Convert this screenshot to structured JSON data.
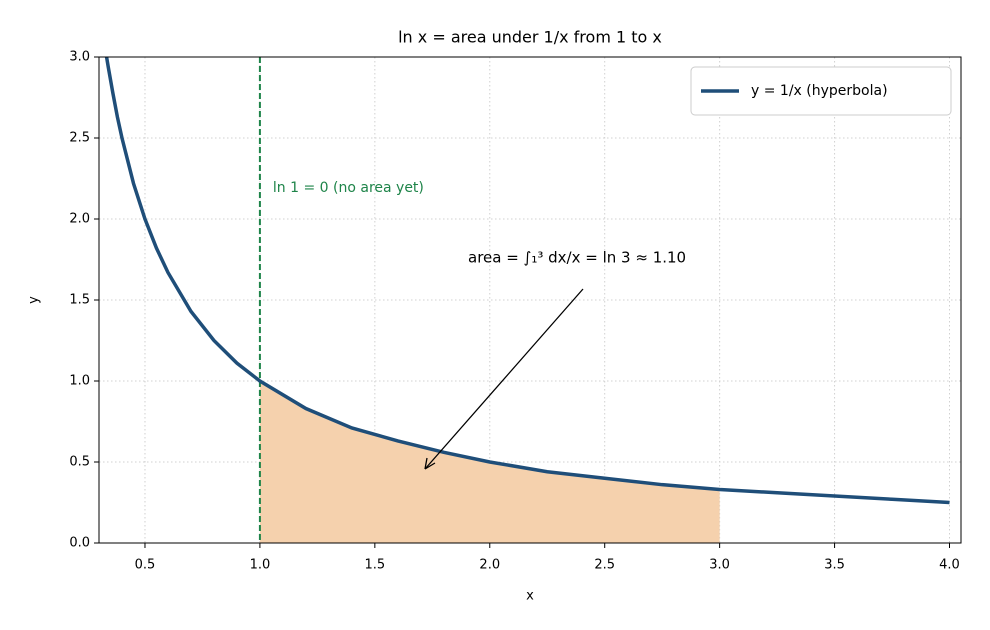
{
  "chart_data": {
    "type": "line",
    "title": "ln x = area under 1/x from 1 to x",
    "x_label": "x",
    "y_label": "y",
    "x": [
      0.333,
      0.34,
      0.36,
      0.38,
      0.4,
      0.45,
      0.5,
      0.55,
      0.6,
      0.7,
      0.8,
      0.9,
      1.0,
      1.2,
      1.4,
      1.6,
      1.8,
      2.0,
      2.25,
      2.5,
      2.75,
      3.0,
      3.25,
      3.5,
      3.75,
      4.0
    ],
    "series": [
      {
        "name": "y = 1/x  (hyperbola)",
        "color": "#1f4e79",
        "values": [
          3.0,
          2.94,
          2.78,
          2.63,
          2.5,
          2.22,
          2.0,
          1.82,
          1.67,
          1.43,
          1.25,
          1.11,
          1.0,
          0.83,
          0.71,
          0.63,
          0.56,
          0.5,
          0.44,
          0.4,
          0.36,
          0.33,
          0.31,
          0.29,
          0.27,
          0.25
        ]
      }
    ],
    "fill_range": [
      1,
      3
    ],
    "fill_color": "#f5d1ad",
    "vline": {
      "x": 1,
      "color": "#1e8449",
      "label": "ln 1 = 0 (no area yet)"
    },
    "annotation": "area  = ∫₁³ dx/x = ln 3 ≈ 1.10",
    "xlim": [
      0.3,
      4.05
    ],
    "ylim": [
      0,
      3
    ],
    "xticks": [
      0.5,
      {
        "value": 1,
        "label": "1.0"
      },
      1.5,
      {
        "value": 2,
        "label": "2.0"
      },
      2.5,
      {
        "value": 3,
        "label": "3.0"
      },
      3.5,
      {
        "value": 4,
        "label": "4.0"
      }
    ],
    "yticks": [
      {
        "value": 0,
        "label": "0.0"
      },
      0.5,
      {
        "value": 1,
        "label": "1.0"
      },
      1.5,
      {
        "value": 2,
        "label": "2.0"
      },
      2.5,
      {
        "value": 3,
        "label": "3.0"
      }
    ],
    "grid": true,
    "legend": "upper right"
  }
}
